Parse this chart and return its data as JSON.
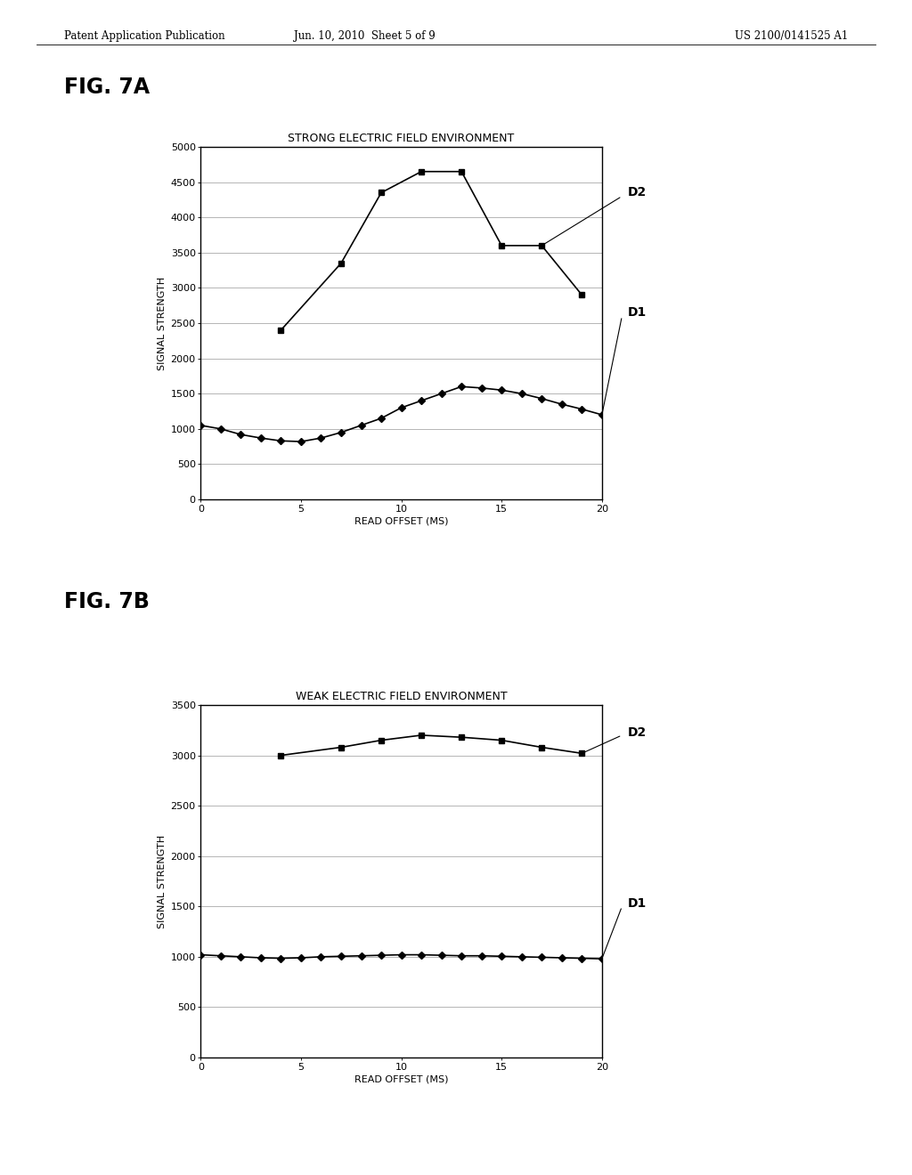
{
  "fig7a": {
    "title": "STRONG ELECTRIC FIELD ENVIRONMENT",
    "xlabel": "READ OFFSET (MS)",
    "ylabel": "SIGNAL STRENGTH",
    "xlim": [
      0,
      20
    ],
    "ylim": [
      0,
      5000
    ],
    "yticks": [
      0,
      500,
      1000,
      1500,
      2000,
      2500,
      3000,
      3500,
      4000,
      4500,
      5000
    ],
    "xticks": [
      0,
      5,
      10,
      15,
      20
    ],
    "D2_x": [
      4,
      7,
      9,
      11,
      13,
      15,
      17,
      19
    ],
    "D2_y": [
      2400,
      3350,
      4350,
      4650,
      4650,
      3600,
      3600,
      2900
    ],
    "D1_x": [
      0,
      1,
      2,
      3,
      4,
      5,
      6,
      7,
      8,
      9,
      10,
      11,
      12,
      13,
      14,
      15,
      16,
      17,
      18,
      19,
      20
    ],
    "D1_y": [
      1050,
      1000,
      920,
      870,
      830,
      820,
      870,
      950,
      1050,
      1150,
      1300,
      1400,
      1500,
      1600,
      1580,
      1550,
      1500,
      1430,
      1350,
      1280,
      1200
    ],
    "label_D2": "D2",
    "label_D1": "D1"
  },
  "fig7b": {
    "title": "WEAK ELECTRIC FIELD ENVIRONMENT",
    "xlabel": "READ OFFSET (MS)",
    "ylabel": "SIGNAL STRENGTH",
    "xlim": [
      0,
      20
    ],
    "ylim": [
      0,
      3500
    ],
    "yticks": [
      0,
      500,
      1000,
      1500,
      2000,
      2500,
      3000,
      3500
    ],
    "xticks": [
      0,
      5,
      10,
      15,
      20
    ],
    "D2_x": [
      4,
      7,
      9,
      11,
      13,
      15,
      17,
      19
    ],
    "D2_y": [
      3000,
      3080,
      3150,
      3200,
      3180,
      3150,
      3080,
      3020
    ],
    "D1_x": [
      0,
      1,
      2,
      3,
      4,
      5,
      6,
      7,
      8,
      9,
      10,
      11,
      12,
      13,
      14,
      15,
      16,
      17,
      18,
      19,
      20
    ],
    "D1_y": [
      1020,
      1010,
      1000,
      990,
      985,
      990,
      1000,
      1005,
      1010,
      1015,
      1020,
      1020,
      1015,
      1010,
      1010,
      1005,
      1000,
      995,
      990,
      985,
      980
    ],
    "label_D2": "D2",
    "label_D1": "D1"
  },
  "fig_label_7a": "FIG. 7A",
  "fig_label_7b": "FIG. 7B",
  "header_left": "Patent Application Publication",
  "header_center": "Jun. 10, 2010  Sheet 5 of 9",
  "header_right": "US 2100/0141525 A1",
  "bg_color": "#ffffff",
  "line_color": "#000000",
  "marker_square": "s",
  "marker_diamond": "D",
  "marker_size_sq": 5,
  "marker_size_dia": 4,
  "line_width": 1.2,
  "grid_color": "#999999",
  "grid_lw": 0.5,
  "annotation_lw": 0.8,
  "annotation_fontsize": 10,
  "axis_label_fontsize": 8,
  "tick_fontsize": 8,
  "title_fontsize": 9
}
